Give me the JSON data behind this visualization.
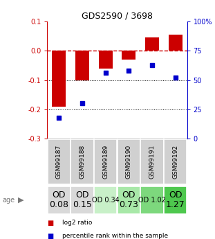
{
  "title": "GDS2590 / 3698",
  "samples": [
    "GSM99187",
    "GSM99188",
    "GSM99189",
    "GSM99190",
    "GSM99191",
    "GSM99192"
  ],
  "log2_ratio": [
    -0.19,
    -0.1,
    -0.06,
    -0.03,
    0.045,
    0.055
  ],
  "percentile_rank": [
    18,
    30,
    56,
    58,
    63,
    52
  ],
  "od_values": [
    "OD\n0.08",
    "OD\n0.15",
    "OD 0.34",
    "OD\n0.73",
    "OD 1.02",
    "OD\n1.27"
  ],
  "od_bg_colors": [
    "#d9d9d9",
    "#d9d9d9",
    "#c8f0c8",
    "#a8e8a8",
    "#7dd87d",
    "#4ec84e"
  ],
  "od_font_sizes": [
    9,
    9,
    7,
    9,
    7,
    9
  ],
  "bar_color": "#cc0000",
  "dot_color": "#0000cc",
  "zero_line_color": "#cc0000",
  "dotted_line_color": "#000000",
  "ylim_left": [
    -0.3,
    0.1
  ],
  "ylim_right": [
    0,
    100
  ],
  "yticks_left": [
    0.1,
    0.0,
    -0.1,
    -0.2,
    -0.3
  ],
  "yticks_right": [
    100,
    75,
    50,
    25,
    0
  ],
  "legend_labels": [
    "log2 ratio",
    "percentile rank within the sample"
  ],
  "xlabel_color": "#cc0000",
  "ylabel_right_color": "#0000cc",
  "cell_bg": "#d0d0d0"
}
